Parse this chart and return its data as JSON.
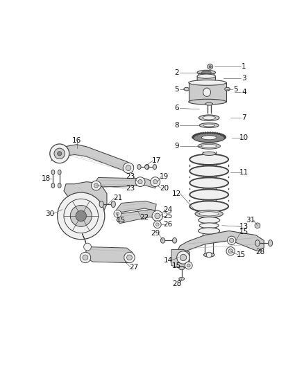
{
  "bg_color": "#ffffff",
  "label_color": "#111111",
  "figsize": [
    4.38,
    5.33
  ],
  "dpi": 100,
  "line_color": "#444444",
  "light_gray": "#cccccc",
  "mid_gray": "#888888",
  "dark_gray": "#444444"
}
